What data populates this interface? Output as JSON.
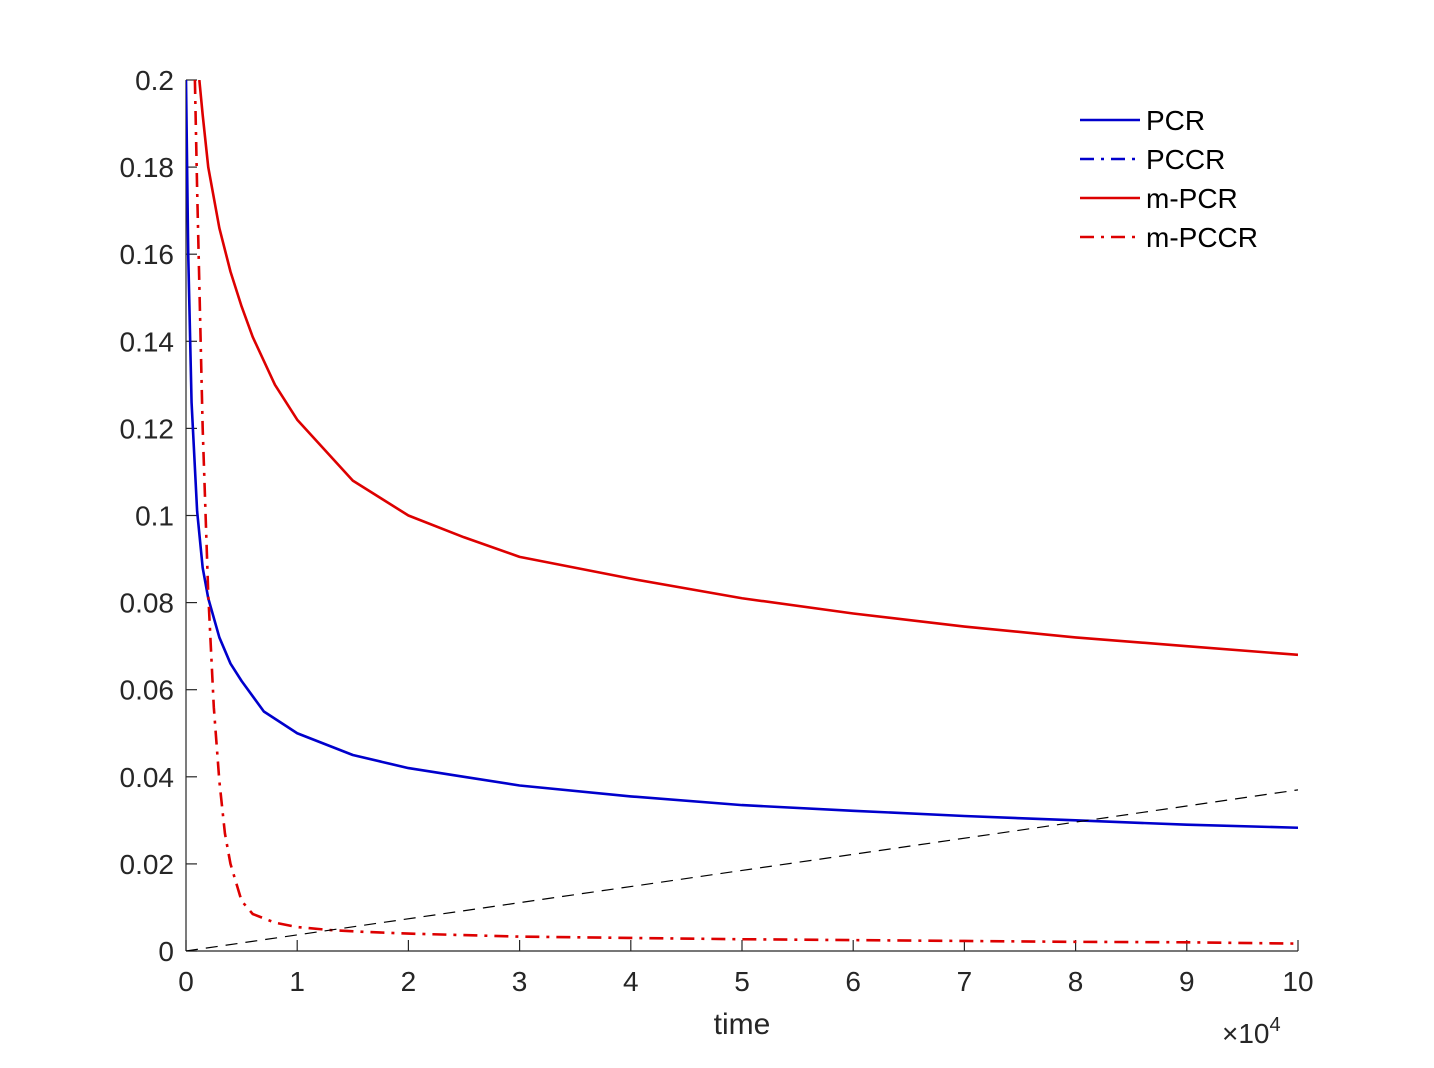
{
  "chart_data": {
    "type": "line",
    "title": "",
    "xlabel": "time",
    "ylabel": "",
    "x_exponent_label": "×10",
    "x_exponent_power": "4",
    "xlim": [
      0,
      10
    ],
    "ylim": [
      0,
      0.2
    ],
    "x_ticks": [
      0,
      1,
      2,
      3,
      4,
      5,
      6,
      7,
      8,
      9,
      10
    ],
    "x_tick_labels": [
      "0",
      "1",
      "2",
      "3",
      "4",
      "5",
      "6",
      "7",
      "8",
      "9",
      "10"
    ],
    "y_ticks": [
      0,
      0.02,
      0.04,
      0.06,
      0.08,
      0.1,
      0.12,
      0.14,
      0.16,
      0.18,
      0.2
    ],
    "y_tick_labels": [
      "0",
      "0.02",
      "0.04",
      "0.06",
      "0.08",
      "0.1",
      "0.12",
      "0.14",
      "0.16",
      "0.18",
      "0.2"
    ],
    "grid": false,
    "legend_position": "top-right",
    "series": [
      {
        "name": "PCR",
        "color": "#0000cc",
        "style": "solid",
        "x": [
          0.0,
          0.02,
          0.05,
          0.1,
          0.15,
          0.2,
          0.3,
          0.4,
          0.5,
          0.7,
          1,
          1.5,
          2,
          2.5,
          3,
          4,
          5,
          6,
          7,
          8,
          9,
          10
        ],
        "y": [
          0.2,
          0.16,
          0.126,
          0.101,
          0.088,
          0.081,
          0.072,
          0.066,
          0.062,
          0.055,
          0.05,
          0.045,
          0.042,
          0.04,
          0.038,
          0.0355,
          0.0335,
          0.0322,
          0.031,
          0.03,
          0.029,
          0.0283
        ]
      },
      {
        "name": "PCCR",
        "color": "#0000cc",
        "style": "dashdot",
        "x": [],
        "y": [],
        "legend_only": true
      },
      {
        "name": "m-PCR",
        "color": "#dd0000",
        "style": "solid",
        "x": [
          0.12,
          0.15,
          0.2,
          0.3,
          0.4,
          0.5,
          0.6,
          0.8,
          1,
          1.5,
          2,
          2.5,
          3,
          4,
          5,
          6,
          7,
          8,
          9,
          10
        ],
        "y": [
          0.2,
          0.192,
          0.18,
          0.166,
          0.156,
          0.148,
          0.141,
          0.13,
          0.122,
          0.108,
          0.1,
          0.095,
          0.0905,
          0.0855,
          0.081,
          0.0775,
          0.0745,
          0.072,
          0.07,
          0.068
        ]
      },
      {
        "name": "m-PCCR",
        "color": "#dd0000",
        "style": "dashdot",
        "x": [
          0.08,
          0.1,
          0.15,
          0.2,
          0.25,
          0.3,
          0.35,
          0.4,
          0.5,
          0.6,
          0.8,
          1,
          1.3,
          1.6,
          2,
          3,
          4,
          5,
          6,
          7,
          8,
          9,
          10
        ],
        "y": [
          0.2,
          0.175,
          0.12,
          0.082,
          0.056,
          0.039,
          0.027,
          0.02,
          0.0115,
          0.0085,
          0.0065,
          0.0055,
          0.0048,
          0.0044,
          0.004,
          0.0033,
          0.003,
          0.0027,
          0.0025,
          0.0023,
          0.0021,
          0.002,
          0.0017
        ]
      },
      {
        "name": "",
        "color": "#000000",
        "style": "dashed",
        "x": [
          0,
          10
        ],
        "y": [
          0,
          0.037
        ],
        "no_legend": true
      }
    ]
  }
}
